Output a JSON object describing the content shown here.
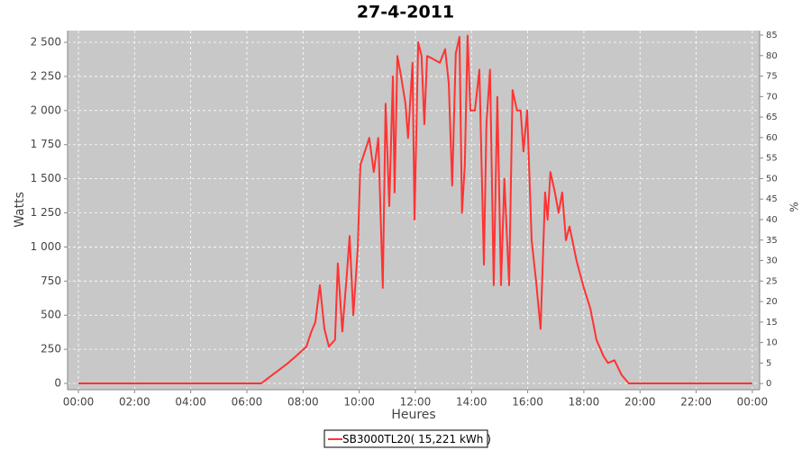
{
  "chart_data": {
    "type": "line",
    "title": "27-4-2011",
    "x_label": "Heures",
    "y_label": "Watts",
    "y2_label": "%",
    "x": [
      0,
      6.51,
      6.83,
      7.15,
      7.47,
      7.8,
      8.12,
      8.28,
      8.44,
      8.6,
      8.76,
      8.92,
      9.14,
      9.24,
      9.4,
      9.56,
      9.66,
      9.79,
      9.95,
      10.04,
      10.2,
      10.36,
      10.52,
      10.68,
      10.84,
      10.94,
      11.07,
      11.2,
      11.26,
      11.36,
      11.49,
      11.65,
      11.74,
      11.9,
      11.97,
      12.1,
      12.22,
      12.32,
      12.42,
      12.61,
      12.87,
      13.06,
      13.19,
      13.31,
      13.44,
      13.57,
      13.66,
      13.76,
      13.86,
      13.96,
      14.12,
      14.28,
      14.44,
      14.53,
      14.66,
      14.79,
      14.92,
      15.05,
      15.17,
      15.34,
      15.46,
      15.62,
      15.75,
      15.85,
      15.98,
      16.14,
      16.3,
      16.46,
      16.62,
      16.71,
      16.81,
      16.97,
      17.1,
      17.23,
      17.36,
      17.49,
      17.74,
      18.0,
      18.23,
      18.45,
      18.7,
      18.86,
      19.09,
      19.35,
      19.6,
      24
    ],
    "series": [
      {
        "name": "SB3000TL20( 15,221 kWh )",
        "color": "#ff3333",
        "values": [
          0,
          0,
          50,
          100,
          150,
          210,
          270,
          370,
          450,
          720,
          400,
          270,
          320,
          880,
          380,
          800,
          1080,
          500,
          1000,
          1600,
          1700,
          1800,
          1550,
          1800,
          700,
          2050,
          1300,
          2250,
          1400,
          2400,
          2250,
          2050,
          1800,
          2350,
          1200,
          2500,
          2400,
          1900,
          2400,
          2380,
          2350,
          2450,
          2200,
          1450,
          2420,
          2540,
          1250,
          1600,
          2550,
          2000,
          2000,
          2300,
          870,
          1900,
          2300,
          720,
          2100,
          720,
          1500,
          720,
          2150,
          2000,
          2000,
          1700,
          2000,
          1050,
          750,
          400,
          1400,
          1200,
          1550,
          1400,
          1250,
          1400,
          1050,
          1150,
          900,
          700,
          550,
          320,
          200,
          150,
          170,
          60,
          0,
          0
        ]
      }
    ],
    "xlim": [
      -0.385,
      24.26
    ],
    "xticks": [
      {
        "value": 0,
        "label": "00:00"
      },
      {
        "value": 2,
        "label": "02:00"
      },
      {
        "value": 4,
        "label": "04:00"
      },
      {
        "value": 6,
        "label": "06:00"
      },
      {
        "value": 8,
        "label": "08:00"
      },
      {
        "value": 10,
        "label": "10:00"
      },
      {
        "value": 12,
        "label": "12:00"
      },
      {
        "value": 14,
        "label": "14:00"
      },
      {
        "value": 16,
        "label": "16:00"
      },
      {
        "value": 18,
        "label": "18:00"
      },
      {
        "value": 20,
        "label": "20:00"
      },
      {
        "value": 22,
        "label": "22:00"
      },
      {
        "value": 24,
        "label": "00:00"
      }
    ],
    "ylim": [
      -46,
      2586
    ],
    "yticks": [
      0,
      250,
      500,
      750,
      {
        "value": 1000,
        "label": "1 000"
      },
      {
        "value": 1250,
        "label": "1 250"
      },
      {
        "value": 1500,
        "label": "1 500"
      },
      {
        "value": 1750,
        "label": "1 750"
      },
      {
        "value": 2000,
        "label": "2 000"
      },
      {
        "value": 2250,
        "label": "2 250"
      },
      {
        "value": 2500,
        "label": "2 500"
      }
    ],
    "y2lim": [
      -1.5,
      86.1
    ],
    "y2ticks": [
      0,
      5,
      10,
      15,
      20,
      25,
      30,
      35,
      40,
      45,
      50,
      55,
      60,
      65,
      70,
      75,
      80,
      85
    ],
    "grid": true
  }
}
